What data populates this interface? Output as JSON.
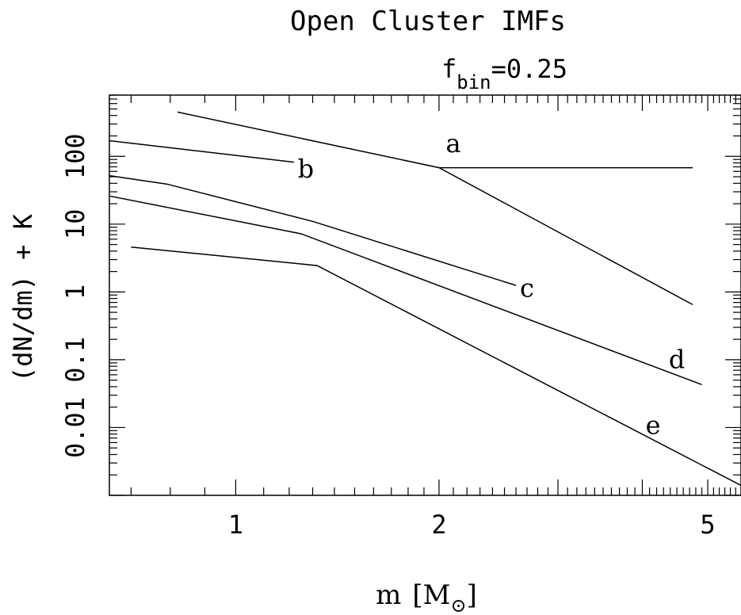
{
  "chart_data": {
    "type": "line",
    "title": "Open Cluster IMFs",
    "subtitle": {
      "base": "f",
      "subscript": "bin",
      "rest": "=0.25"
    },
    "xlabel": {
      "base": "m",
      "open": "[M",
      "close": "]"
    },
    "ylabel": "(dN/dm) + K",
    "x_scale": "log",
    "y_scale": "log",
    "xlim": [
      0.65,
      5.6
    ],
    "ylim": [
      0.001,
      800
    ],
    "x_ticks": [
      {
        "value": 1,
        "label": "1"
      },
      {
        "value": 2,
        "label": "2"
      },
      {
        "value": 5,
        "label": "5"
      }
    ],
    "y_ticks": [
      {
        "value": 0.01,
        "label": "0.01"
      },
      {
        "value": 0.1,
        "label": "0.1"
      },
      {
        "value": 1,
        "label": "1"
      },
      {
        "value": 10,
        "label": "10"
      },
      {
        "value": 100,
        "label": "100"
      }
    ],
    "grid": false,
    "series": [
      {
        "label": "a",
        "x": [
          0.82,
          2.0,
          4.75
        ],
        "y": [
          450,
          68,
          0.65
        ]
      },
      {
        "label": "a",
        "x": [
          2.0,
          4.75
        ],
        "y": [
          68,
          68
        ]
      },
      {
        "label": "b",
        "x": [
          0.65,
          1.22
        ],
        "y": [
          170,
          82
        ]
      },
      {
        "label": "c",
        "x": [
          0.65,
          0.79,
          1.3,
          2.6
        ],
        "y": [
          52,
          39,
          11,
          1.25
        ]
      },
      {
        "label": "d",
        "x": [
          0.65,
          1.25,
          4.9
        ],
        "y": [
          26,
          7.2,
          0.043
        ]
      },
      {
        "label": "e",
        "x": [
          0.7,
          1.32,
          5.6
        ],
        "y": [
          4.6,
          2.45,
          0.0014
        ]
      }
    ],
    "annotations": [
      {
        "text": "a",
        "x": 2.1,
        "y": 115
      },
      {
        "text": "b",
        "x": 1.27,
        "y": 49
      },
      {
        "text": "c",
        "x": 2.7,
        "y": 0.85
      },
      {
        "text": "d",
        "x": 4.5,
        "y": 0.075
      },
      {
        "text": "e",
        "x": 4.15,
        "y": 0.008
      }
    ]
  }
}
